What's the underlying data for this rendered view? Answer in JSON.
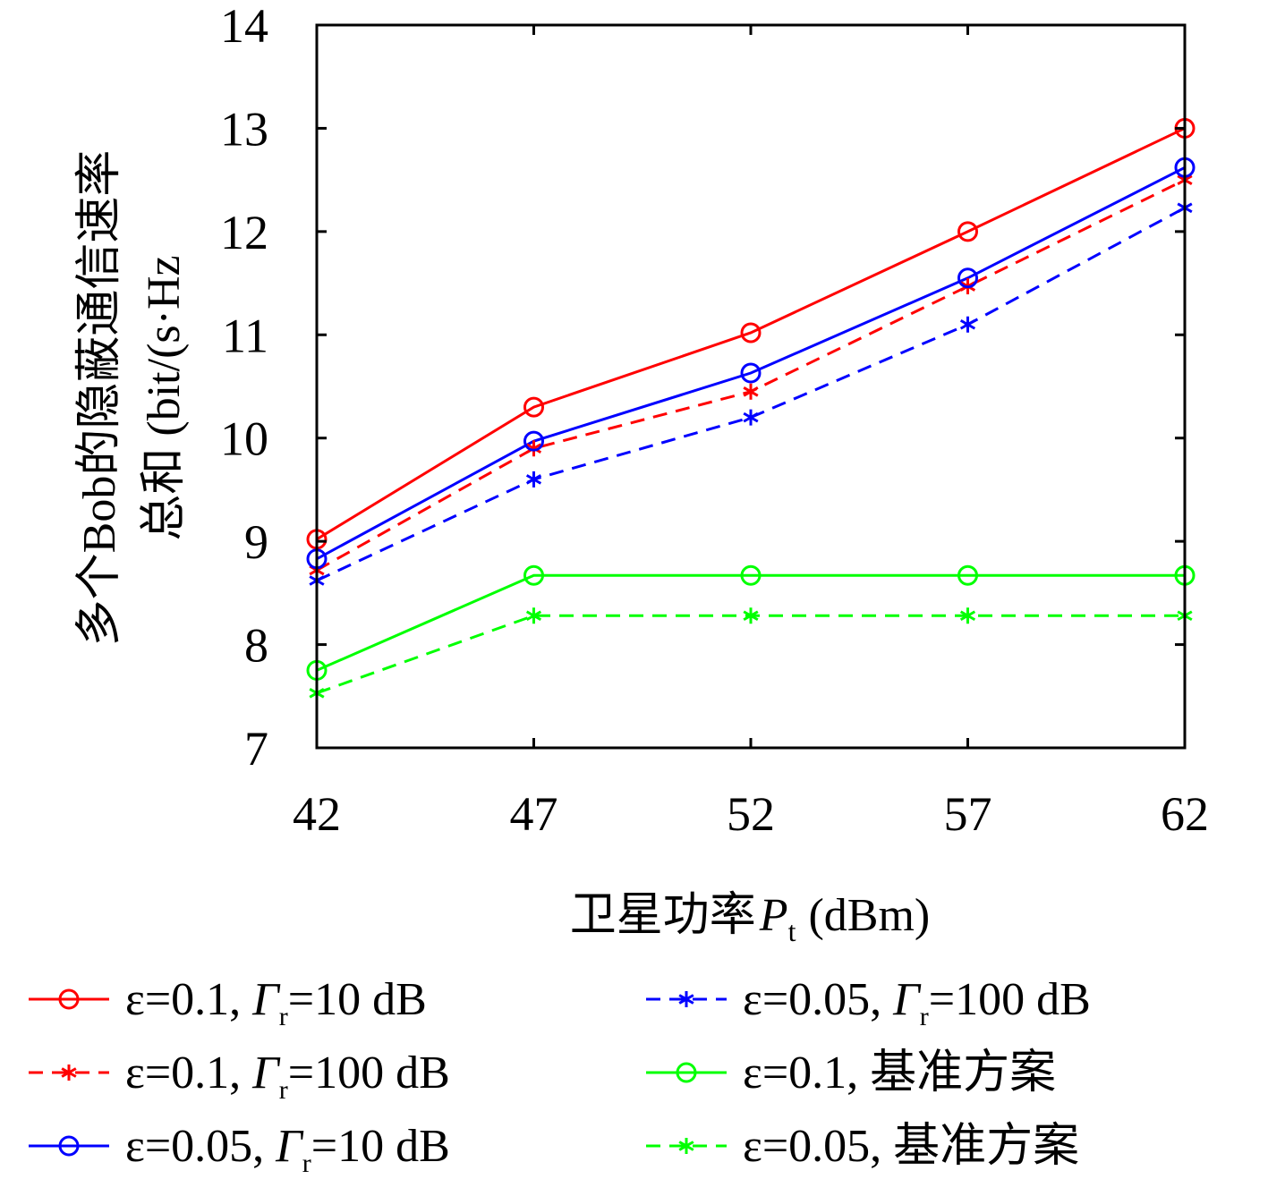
{
  "chart_data": {
    "type": "line",
    "title": "",
    "xlabel_parts": {
      "text": "卫星功率",
      "symbol": "P",
      "subscript": "t",
      "unit": "(dBm)"
    },
    "ylabel_lines": [
      "多个Bob的隐蔽通信速率",
      "总和 (bit/(s·Hz"
    ],
    "x": [
      42,
      47,
      52,
      57,
      62
    ],
    "xticks": [
      "42",
      "47",
      "52",
      "57",
      "62"
    ],
    "yticks": [
      "7",
      "8",
      "9",
      "10",
      "11",
      "12",
      "13",
      "14"
    ],
    "xlim": [
      42,
      62
    ],
    "ylim": [
      7,
      14
    ],
    "grid": false,
    "legend_position": "bottom",
    "series": [
      {
        "name_prefix": "ε=0.1, ",
        "name_symbol": "Γ",
        "name_sub": "r",
        "name_suffix": "=10 dB",
        "values": [
          9.02,
          10.3,
          11.02,
          12.0,
          13.0
        ],
        "color": "#ff0000",
        "dash": "solid",
        "marker": "circle"
      },
      {
        "name_prefix": "ε=0.1, ",
        "name_symbol": "Γ",
        "name_sub": "r",
        "name_suffix": "=100 dB",
        "values": [
          8.72,
          9.9,
          10.45,
          11.47,
          12.5
        ],
        "color": "#ff0000",
        "dash": "dashed",
        "marker": "asterisk"
      },
      {
        "name_prefix": "ε=0.05, ",
        "name_symbol": "Γ",
        "name_sub": "r",
        "name_suffix": "=10 dB",
        "values": [
          8.83,
          9.97,
          10.63,
          11.55,
          12.62
        ],
        "color": "#0000ff",
        "dash": "solid",
        "marker": "circle"
      },
      {
        "name_prefix": "ε=0.05, ",
        "name_symbol": "Γ",
        "name_sub": "r",
        "name_suffix": "=100 dB",
        "values": [
          8.62,
          9.6,
          10.2,
          11.1,
          12.23
        ],
        "color": "#0000ff",
        "dash": "dashed",
        "marker": "asterisk"
      },
      {
        "name_prefix": "ε=0.1, ",
        "name_symbol": "",
        "name_sub": "",
        "name_suffix": "基准方案",
        "values": [
          7.75,
          8.67,
          8.67,
          8.67,
          8.67
        ],
        "color": "#00ff00",
        "dash": "solid",
        "marker": "circle"
      },
      {
        "name_prefix": "ε=0.05, ",
        "name_symbol": "",
        "name_sub": "",
        "name_suffix": "基准方案",
        "values": [
          7.53,
          8.28,
          8.28,
          8.28,
          8.28
        ],
        "color": "#00ff00",
        "dash": "dashed",
        "marker": "asterisk"
      }
    ]
  }
}
